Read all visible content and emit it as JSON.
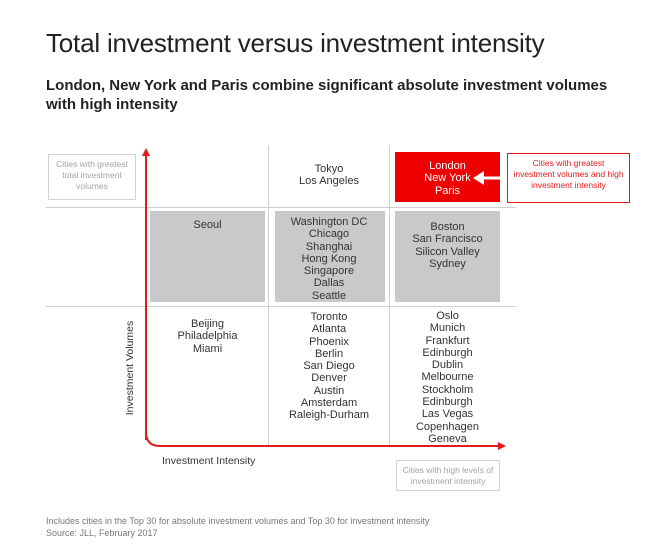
{
  "header": {
    "title": "Total investment versus investment intensity",
    "subtitle": "London, New York and Paris combine significant absolute investment volumes with high intensity"
  },
  "axes": {
    "y_label": "Investment Volumes",
    "x_label": "Investment Intensity"
  },
  "notes": {
    "top_left": "Cities with greatest total investment volumes",
    "top_right": "Cities with greatest investment volumes and high investment intensity",
    "bottom_right": "Cities with high levels of investment intensity"
  },
  "cells": {
    "top_mid": "Tokyo\nLos Angeles",
    "top_right": "London\nNew York\nParis",
    "mid_left": "Seoul",
    "mid_mid": "Washington DC\nChicago\nShanghai\nHong Kong\nSingapore\nDallas\nSeattle",
    "mid_right": "Boston\nSan Francisco\nSilicon Valley\nSydney",
    "bot_left": "Beijing\nPhiladelphia\nMiami",
    "bot_mid": "Toronto\nAtlanta\nPhoenix\nBerlin\nSan Diego\nDenver\nAustin\nAmsterdam\nRaleigh-Durham",
    "bot_right": "Oslo\nMunich\nFrankfurt\nEdinburgh\nDublin\nMelbourne\nStockholm\nEdinburgh\nLas Vegas\nCopenhagen\nGeneva"
  },
  "footer": {
    "line1": "Includes cities in the Top 30 for absolute investment volumes and Top 30 for investment intensity",
    "line2": "Source: JLL, February 2017"
  },
  "colors": {
    "accent_red": "#ee0000",
    "highlight_grey": "#c9c9c9",
    "grid_grey": "#cfcfcf"
  }
}
